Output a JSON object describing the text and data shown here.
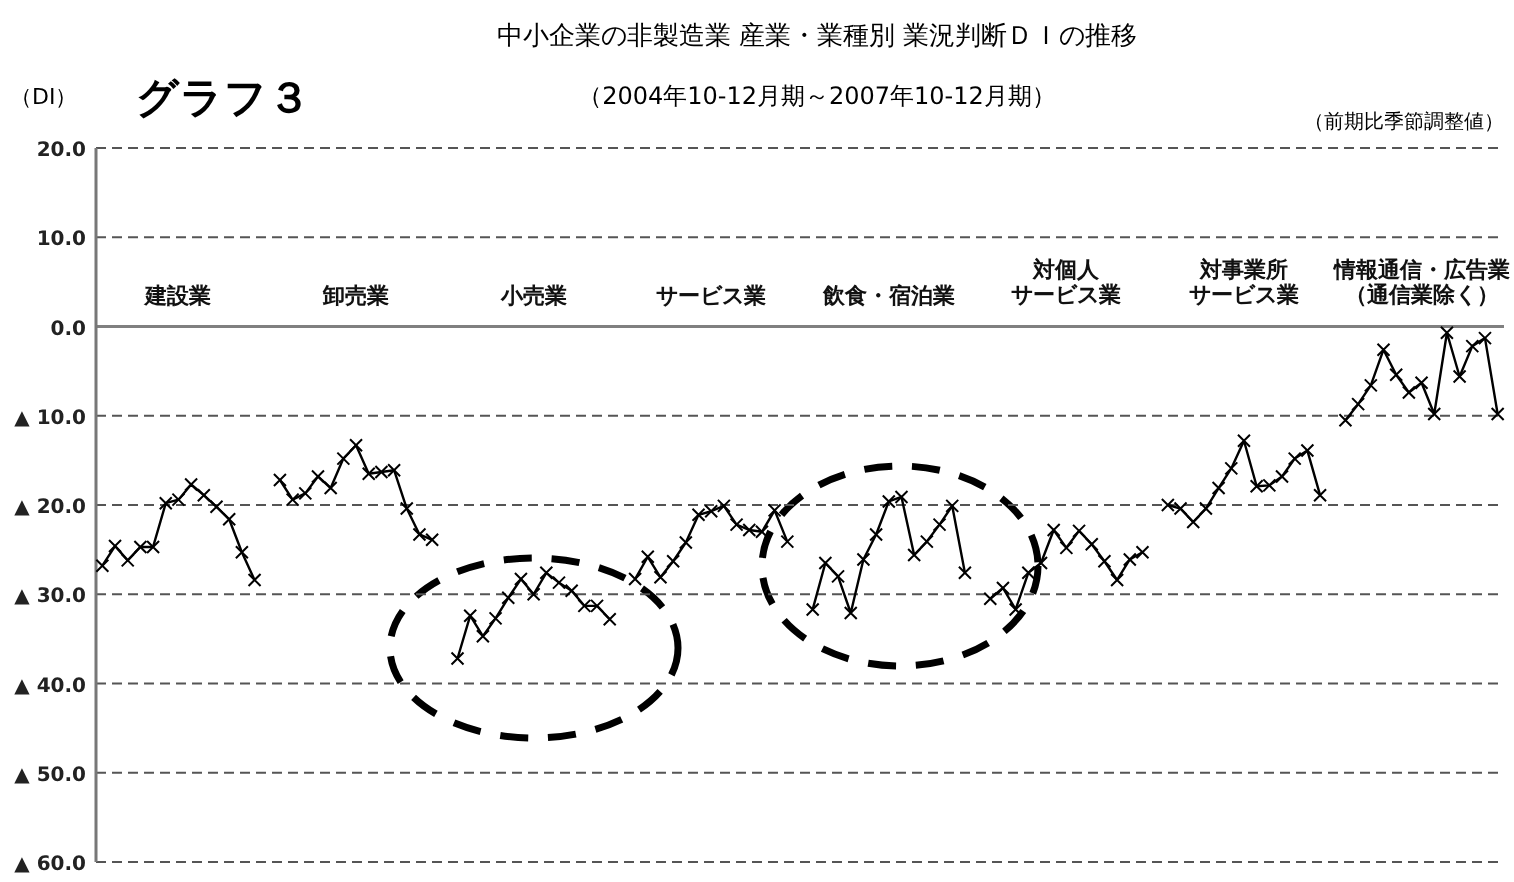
{
  "chart_data": {
    "type": "line",
    "title": "中小企業の非製造業 産業・業種別 業況判断ＤＩの推移",
    "subtitle": "（2004年10-12月期～2007年10-12月期）",
    "ylabel": "（DI）",
    "annotations": [
      "グラフ３",
      "（前期比季節調整値）",
      "建設業",
      "卸売業",
      "小売業",
      "サービス業",
      "飲食・宿泊業",
      "対個人サービス業",
      "対事業所サービス業",
      "情報通信・広告業（通信業除く）"
    ],
    "categories": [
      null,
      null,
      null,
      null,
      null,
      null,
      null,
      null,
      null,
      null,
      null,
      null,
      null,
      null,
      null,
      null,
      null,
      null,
      null,
      null,
      null,
      null,
      null,
      null,
      null,
      null,
      null,
      null,
      null,
      null,
      null,
      null,
      null,
      null,
      null,
      null,
      null,
      null,
      null,
      null,
      null,
      null,
      null,
      null,
      null,
      null,
      null,
      null,
      null,
      null,
      null,
      null,
      null,
      null,
      null,
      null,
      null,
      null,
      null,
      null,
      null,
      null,
      null,
      null,
      null,
      null,
      null,
      null,
      null,
      null,
      null,
      null,
      null,
      null,
      null,
      null,
      null,
      null,
      null,
      null,
      null,
      null,
      null,
      null,
      null,
      null,
      null,
      null,
      null,
      null,
      null,
      null,
      null,
      null,
      null,
      null,
      null,
      null,
      null,
      null,
      null,
      null,
      null,
      null,
      null,
      null,
      null,
      null,
      null,
      null,
      null
    ],
    "series": [
      {
        "color": "#000000",
        "values": [
          -26.8,
          -24.6,
          -26.2,
          -24.7,
          -24.7,
          -19.8,
          -19.4,
          -17.7,
          -18.9,
          -20.2,
          -21.6,
          -25.3,
          -28.4,
          null,
          null,
          null,
          null,
          null,
          null,
          null,
          null,
          null,
          null,
          null,
          null,
          null,
          null,
          null,
          null,
          null,
          null,
          null,
          null,
          null,
          null,
          null,
          null,
          null,
          null,
          null,
          null,
          null,
          null,
          null,
          null,
          null,
          null,
          null,
          null,
          null,
          null,
          null,
          null,
          null,
          null,
          null,
          null,
          null,
          null,
          null,
          null,
          null,
          null,
          null,
          null,
          null,
          null,
          null,
          null,
          null,
          null,
          null,
          null,
          null,
          null,
          null,
          null,
          null,
          null,
          null,
          null,
          null,
          null,
          null,
          null,
          null,
          null,
          null,
          null,
          null,
          null,
          null,
          null,
          null,
          null,
          null,
          null,
          null,
          null,
          null,
          null,
          null,
          null,
          null,
          null,
          null,
          null,
          null,
          null,
          null,
          null
        ]
      },
      {
        "color": "#000000",
        "values": [
          null,
          null,
          null,
          null,
          null,
          null,
          null,
          null,
          null,
          null,
          null,
          null,
          null,
          null,
          -17.2,
          -19.4,
          -18.7,
          -16.8,
          -18.1,
          -14.8,
          -13.3,
          -16.5,
          -16.3,
          -16.1,
          -20.4,
          -23.3,
          -23.9,
          null,
          null,
          null,
          null,
          null,
          null,
          null,
          null,
          null,
          null,
          null,
          null,
          null,
          null,
          null,
          null,
          null,
          null,
          null,
          null,
          null,
          null,
          null,
          null,
          null,
          null,
          null,
          null,
          null,
          null,
          null,
          null,
          null,
          null,
          null,
          null,
          null,
          null,
          null,
          null,
          null,
          null,
          null,
          null,
          null,
          null,
          null,
          null,
          null,
          null,
          null,
          null,
          null,
          null,
          null,
          null,
          null,
          null,
          null,
          null,
          null,
          null,
          null,
          null,
          null,
          null,
          null,
          null,
          null,
          null,
          null,
          null,
          null,
          null,
          null,
          null,
          null,
          null,
          null,
          null,
          null,
          null,
          null,
          null
        ]
      },
      {
        "color": "#000000",
        "values": [
          null,
          null,
          null,
          null,
          null,
          null,
          null,
          null,
          null,
          null,
          null,
          null,
          null,
          null,
          null,
          null,
          null,
          null,
          null,
          null,
          null,
          null,
          null,
          null,
          null,
          null,
          null,
          null,
          -37.2,
          -32.4,
          -34.7,
          -32.7,
          -30.4,
          -28.3,
          -30.0,
          -27.6,
          -28.7,
          -29.6,
          -31.3,
          -31.3,
          -32.8,
          null,
          null,
          null,
          null,
          null,
          null,
          null,
          null,
          null,
          null,
          null,
          null,
          null,
          null,
          null,
          null,
          null,
          null,
          null,
          null,
          null,
          null,
          null,
          null,
          null,
          null,
          null,
          null,
          null,
          null,
          null,
          null,
          null,
          null,
          null,
          null,
          null,
          null,
          null,
          null,
          null,
          null,
          null,
          null,
          null,
          null,
          null,
          null,
          null,
          null,
          null,
          null,
          null,
          null,
          null,
          null,
          null,
          null,
          null,
          null,
          null,
          null,
          null,
          null,
          null,
          null,
          null,
          null,
          null,
          null
        ]
      },
      {
        "color": "#000000",
        "values": [
          null,
          null,
          null,
          null,
          null,
          null,
          null,
          null,
          null,
          null,
          null,
          null,
          null,
          null,
          null,
          null,
          null,
          null,
          null,
          null,
          null,
          null,
          null,
          null,
          null,
          null,
          null,
          null,
          null,
          null,
          null,
          null,
          null,
          null,
          null,
          null,
          null,
          null,
          null,
          null,
          null,
          null,
          -28.3,
          -25.8,
          -28.1,
          -26.3,
          -24.2,
          -21.1,
          -20.7,
          -20.1,
          -22.2,
          -22.8,
          -23.0,
          -20.6,
          -24.1,
          null,
          null,
          null,
          null,
          null,
          null,
          null,
          null,
          null,
          null,
          null,
          null,
          null,
          null,
          null,
          null,
          null,
          null,
          null,
          null,
          null,
          null,
          null,
          null,
          null,
          null,
          null,
          null,
          null,
          null,
          null,
          null,
          null,
          null,
          null,
          null,
          null,
          null,
          null,
          null,
          null,
          null,
          null,
          null,
          null,
          null,
          null,
          null,
          null,
          null,
          null,
          null,
          null,
          null,
          null,
          null
        ]
      },
      {
        "color": "#000000",
        "values": [
          null,
          null,
          null,
          null,
          null,
          null,
          null,
          null,
          null,
          null,
          null,
          null,
          null,
          null,
          null,
          null,
          null,
          null,
          null,
          null,
          null,
          null,
          null,
          null,
          null,
          null,
          null,
          null,
          null,
          null,
          null,
          null,
          null,
          null,
          null,
          null,
          null,
          null,
          null,
          null,
          null,
          null,
          null,
          null,
          null,
          null,
          null,
          null,
          null,
          null,
          null,
          null,
          null,
          null,
          null,
          null,
          -31.7,
          -26.5,
          -28.0,
          -32.1,
          -26.1,
          -23.3,
          -19.6,
          -19.1,
          -25.6,
          -24.1,
          -22.2,
          -20.1,
          -27.6,
          null,
          null,
          null,
          null,
          null,
          null,
          null,
          null,
          null,
          null,
          null,
          null,
          null,
          null,
          null,
          null,
          null,
          null,
          null,
          null,
          null,
          null,
          null,
          null,
          null,
          null,
          null,
          null,
          null,
          null,
          null,
          null,
          null,
          null,
          null,
          null,
          null,
          null,
          null,
          null,
          null,
          null
        ]
      },
      {
        "color": "#000000",
        "values": [
          null,
          null,
          null,
          null,
          null,
          null,
          null,
          null,
          null,
          null,
          null,
          null,
          null,
          null,
          null,
          null,
          null,
          null,
          null,
          null,
          null,
          null,
          null,
          null,
          null,
          null,
          null,
          null,
          null,
          null,
          null,
          null,
          null,
          null,
          null,
          null,
          null,
          null,
          null,
          null,
          null,
          null,
          null,
          null,
          null,
          null,
          null,
          null,
          null,
          null,
          null,
          null,
          null,
          null,
          null,
          null,
          null,
          null,
          null,
          null,
          null,
          null,
          null,
          null,
          null,
          null,
          null,
          null,
          null,
          null,
          -30.5,
          -29.3,
          -31.7,
          -27.6,
          -26.5,
          -22.8,
          -24.8,
          -22.9,
          -24.4,
          -26.3,
          -28.4,
          -26.1,
          -25.3,
          null,
          null,
          null,
          null,
          null,
          null,
          null,
          null,
          null,
          null,
          null,
          null,
          null,
          null,
          null,
          null,
          null,
          null,
          null,
          null,
          null,
          null,
          null,
          null,
          null,
          null,
          null,
          null
        ]
      },
      {
        "color": "#000000",
        "values": [
          null,
          null,
          null,
          null,
          null,
          null,
          null,
          null,
          null,
          null,
          null,
          null,
          null,
          null,
          null,
          null,
          null,
          null,
          null,
          null,
          null,
          null,
          null,
          null,
          null,
          null,
          null,
          null,
          null,
          null,
          null,
          null,
          null,
          null,
          null,
          null,
          null,
          null,
          null,
          null,
          null,
          null,
          null,
          null,
          null,
          null,
          null,
          null,
          null,
          null,
          null,
          null,
          null,
          null,
          null,
          null,
          null,
          null,
          null,
          null,
          null,
          null,
          null,
          null,
          null,
          null,
          null,
          null,
          null,
          null,
          null,
          null,
          null,
          null,
          null,
          null,
          null,
          null,
          null,
          null,
          null,
          null,
          null,
          null,
          -20.0,
          -20.4,
          -21.9,
          -20.4,
          -18.1,
          -15.9,
          -12.8,
          -17.9,
          -17.8,
          -16.8,
          -14.8,
          -13.9,
          -18.9,
          null,
          null,
          null,
          null,
          null,
          null,
          null,
          null,
          null,
          null,
          null,
          null,
          null,
          null
        ]
      },
      {
        "color": "#000000",
        "values": [
          null,
          null,
          null,
          null,
          null,
          null,
          null,
          null,
          null,
          null,
          null,
          null,
          null,
          null,
          null,
          null,
          null,
          null,
          null,
          null,
          null,
          null,
          null,
          null,
          null,
          null,
          null,
          null,
          null,
          null,
          null,
          null,
          null,
          null,
          null,
          null,
          null,
          null,
          null,
          null,
          null,
          null,
          null,
          null,
          null,
          null,
          null,
          null,
          null,
          null,
          null,
          null,
          null,
          null,
          null,
          null,
          null,
          null,
          null,
          null,
          null,
          null,
          null,
          null,
          null,
          null,
          null,
          null,
          null,
          null,
          null,
          null,
          null,
          null,
          null,
          null,
          null,
          null,
          null,
          null,
          null,
          null,
          null,
          null,
          null,
          null,
          null,
          null,
          null,
          null,
          null,
          null,
          null,
          null,
          null,
          null,
          null,
          null,
          -10.5,
          -8.7,
          -6.6,
          -2.6,
          -5.4,
          -7.4,
          -6.3,
          -9.8,
          -0.7,
          -5.6,
          -2.2,
          -1.3,
          -9.8
        ]
      }
    ],
    "ylim": [
      -60,
      20
    ],
    "yticks": [
      {
        "value": 20,
        "label": "20.0"
      },
      {
        "value": 10,
        "label": "10.0"
      },
      {
        "value": 0,
        "label": "0.0"
      },
      {
        "value": -10,
        "label": "▲ 10.0"
      },
      {
        "value": -20,
        "label": "▲ 20.0"
      },
      {
        "value": -30,
        "label": "▲ 30.0"
      },
      {
        "value": -40,
        "label": "▲ 40.0"
      },
      {
        "value": -50,
        "label": "▲ 50.0"
      },
      {
        "value": -60,
        "label": "▲ 60.0"
      }
    ],
    "ref_lines": [
      {
        "axis": "y",
        "value": 0,
        "color": "#808080",
        "line_style": "solid"
      }
    ],
    "grid": "y",
    "marker": "cross",
    "line_style": "solid"
  }
}
